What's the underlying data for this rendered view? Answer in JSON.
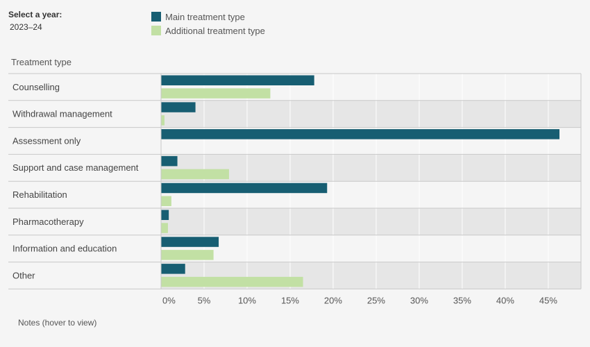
{
  "filter": {
    "label": "Select a year:",
    "value": "2023–24"
  },
  "legend": {
    "main_label": "Main treatment type",
    "additional_label": "Additional treatment type"
  },
  "row_header": "Treatment type",
  "notes_label": "Notes (hover to view)",
  "colors": {
    "main": "#175e72",
    "additional": "#c2e0a4",
    "band_light": "#f5f5f5",
    "band_dark": "#e6e6e6",
    "grid": "#ffffff",
    "border": "#c8c8c8"
  },
  "chart_data": {
    "type": "bar",
    "orientation": "horizontal",
    "categories": [
      "Counselling",
      "Withdrawal management",
      "Assessment only",
      "Support and case management",
      "Rehabilitation",
      "Pharmacotherapy",
      "Information and education",
      "Other"
    ],
    "series": [
      {
        "name": "Main treatment type",
        "values": [
          17.8,
          4.0,
          46.3,
          1.9,
          19.3,
          0.9,
          6.7,
          2.8
        ]
      },
      {
        "name": "Additional treatment type",
        "values": [
          12.7,
          0.4,
          null,
          7.9,
          1.2,
          0.8,
          6.1,
          16.5
        ]
      }
    ],
    "x_ticks": [
      "0%",
      "5%",
      "10%",
      "15%",
      "20%",
      "25%",
      "30%",
      "35%",
      "40%",
      "45%"
    ],
    "xlim": [
      0,
      48.8
    ],
    "xlabel": "",
    "ylabel": "Treatment type",
    "grid": true,
    "legend_position": "top-left"
  }
}
